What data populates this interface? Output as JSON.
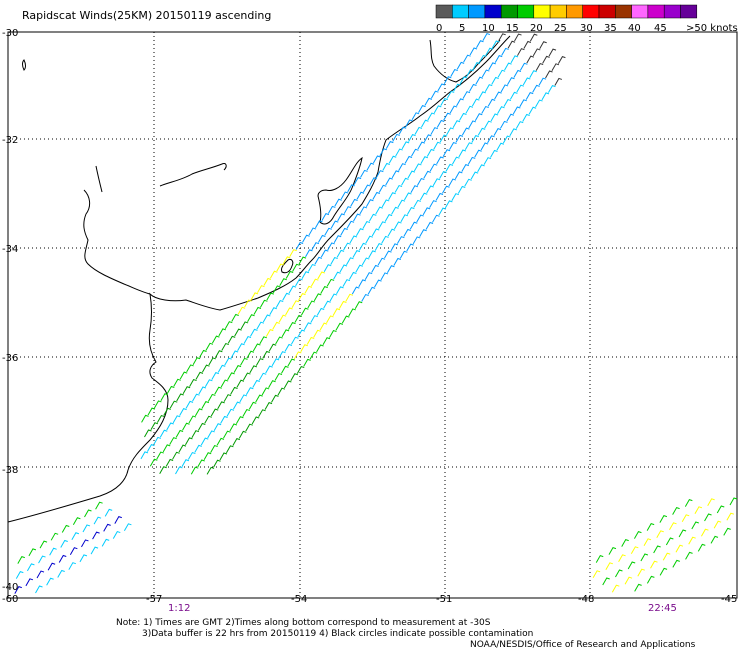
{
  "title": "Rapidscat Winds(25KM) 20150119 ascending",
  "legend": {
    "labels": [
      "0",
      "5",
      "10",
      "15",
      "20",
      "25",
      "30",
      "35",
      "40",
      "45",
      ">50 knots"
    ],
    "colors": [
      "#5a5a5a",
      "#00ccff",
      "#0099ff",
      "#0000cc",
      "#009900",
      "#00cc00",
      "#ffff00",
      "#ffcc00",
      "#ff9900",
      "#ff0000",
      "#cc0000",
      "#993300",
      "#ff66ff",
      "#cc00cc",
      "#9900cc",
      "#660099"
    ]
  },
  "lat_labels": [
    "-30",
    "-32",
    "-34",
    "-36",
    "-38",
    "-40"
  ],
  "lon_labels": [
    "-60",
    "-57",
    "-54",
    "-51",
    "-48",
    "-45"
  ],
  "times": [
    "1:12",
    "22:45"
  ],
  "notes": [
    "Note: 1) Times are GMT 2)Times along bottom correspond to measurement at -30S",
    "3)Data buffer is 22 hrs from 20150119 4) Black circles indicate possible contamination"
  ],
  "credit": "NOAA/NESDIS/Office of Research and Applications"
}
